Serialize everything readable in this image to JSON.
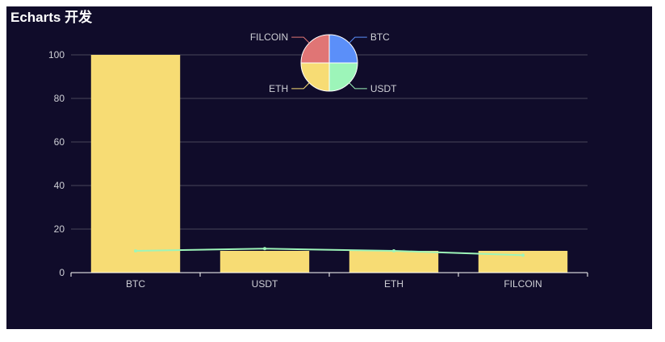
{
  "chart_data": {
    "title": "Echarts 开发",
    "categories": [
      "BTC",
      "USDT",
      "ETH",
      "FILCOIN"
    ],
    "bar": {
      "type": "bar",
      "values": [
        100,
        10,
        10,
        10
      ],
      "color": "#f7dc74"
    },
    "line": {
      "type": "line",
      "values": [
        10,
        11,
        10,
        8
      ],
      "color": "#9df5b9"
    },
    "ylim": [
      0,
      100
    ],
    "yticks": [
      "0",
      "20",
      "40",
      "60",
      "80",
      "100"
    ],
    "grid": true,
    "pie": {
      "type": "pie",
      "slices": [
        {
          "name": "BTC",
          "value": 25,
          "color": "#5b8ff9"
        },
        {
          "name": "USDT",
          "value": 25,
          "color": "#9df5b9"
        },
        {
          "name": "ETH",
          "value": 25,
          "color": "#f7dc74"
        },
        {
          "name": "FILCOIN",
          "value": 25,
          "color": "#e07575"
        }
      ]
    },
    "colors": {
      "background": "#100c2a",
      "axis_text": "#cfd0d6",
      "grid_line": "#48465a",
      "axis_line": "#ffffff"
    }
  }
}
